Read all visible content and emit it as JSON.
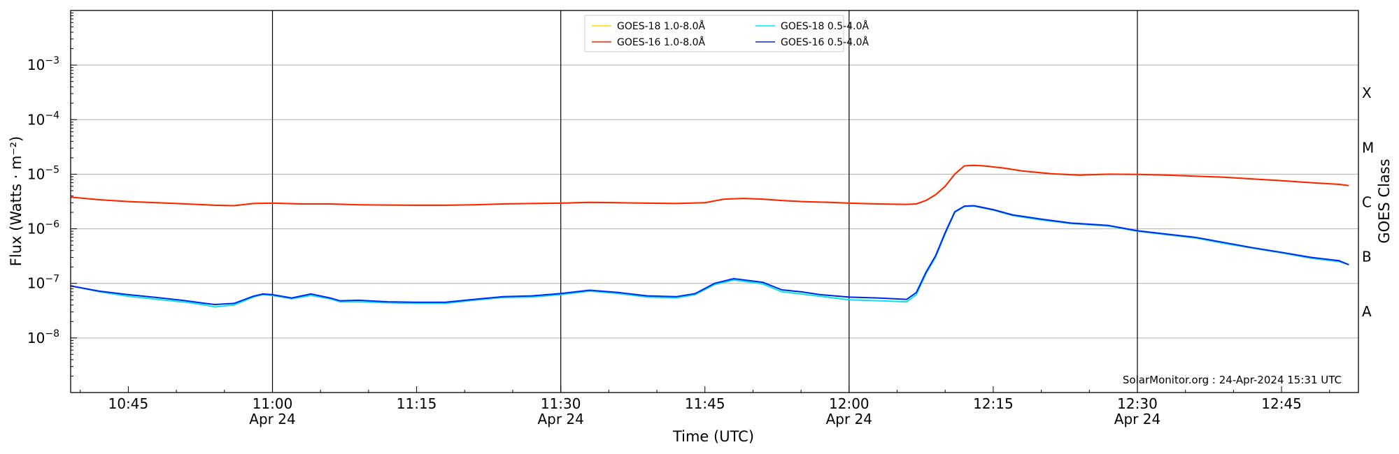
{
  "chart_data": {
    "type": "line",
    "xlabel": "Time (UTC)",
    "ylabel": "Flux (Watts · m⁻²)",
    "ylabel_right": "GOES Class",
    "yscale": "log",
    "ylim": [
      1e-09,
      0.01
    ],
    "xlim": [
      "10:39",
      "12:53"
    ],
    "grid": "horizontal",
    "legend_position": "top-center",
    "x_ticks": [
      {
        "time": "10:45",
        "label": "10:45",
        "sublabel": ""
      },
      {
        "time": "11:00",
        "label": "11:00",
        "sublabel": "Apr 24"
      },
      {
        "time": "11:15",
        "label": "11:15",
        "sublabel": ""
      },
      {
        "time": "11:30",
        "label": "11:30",
        "sublabel": "Apr 24"
      },
      {
        "time": "11:45",
        "label": "11:45",
        "sublabel": ""
      },
      {
        "time": "12:00",
        "label": "12:00",
        "sublabel": "Apr 24"
      },
      {
        "time": "12:15",
        "label": "12:15",
        "sublabel": ""
      },
      {
        "time": "12:30",
        "label": "12:30",
        "sublabel": "Apr 24"
      },
      {
        "time": "12:45",
        "label": "12:45",
        "sublabel": ""
      }
    ],
    "day_lines": [
      "11:00",
      "11:30",
      "12:00",
      "12:30"
    ],
    "y_ticks": [
      {
        "value": 1e-08,
        "base": "10",
        "exp": "−8"
      },
      {
        "value": 1e-07,
        "base": "10",
        "exp": "−7"
      },
      {
        "value": 1e-06,
        "base": "10",
        "exp": "−6"
      },
      {
        "value": 1e-05,
        "base": "10",
        "exp": "−5"
      },
      {
        "value": 0.0001,
        "base": "10",
        "exp": "−4"
      },
      {
        "value": 0.001,
        "base": "10",
        "exp": "−3"
      }
    ],
    "goes_classes": [
      {
        "label": "A",
        "value": 3.16e-08
      },
      {
        "label": "B",
        "value": 3.16e-07
      },
      {
        "label": "C",
        "value": 3.16e-06
      },
      {
        "label": "M",
        "value": 3.16e-05
      },
      {
        "label": "X",
        "value": 0.000316
      }
    ],
    "legend": [
      {
        "name": "GOES-18 1.0-8.0Å",
        "color": "#ffd700"
      },
      {
        "name": "GOES-18 0.5-4.0Å",
        "color": "#00e5ff"
      },
      {
        "name": "GOES-16 1.0-8.0Å",
        "color": "#ff2200"
      },
      {
        "name": "GOES-16 0.5-4.0Å",
        "color": "#0022ee"
      }
    ],
    "series": [
      {
        "name": "GOES-18 1.0-8.0Å",
        "color": "#ffd700",
        "points": [
          [
            "10:39",
            3.8e-06
          ],
          [
            "10:42",
            3.4e-06
          ],
          [
            "10:45",
            3.15e-06
          ],
          [
            "10:48",
            3e-06
          ],
          [
            "10:51",
            2.85e-06
          ],
          [
            "10:54",
            2.7e-06
          ],
          [
            "10:56",
            2.65e-06
          ],
          [
            "10:58",
            2.9e-06
          ],
          [
            "11:00",
            2.95e-06
          ],
          [
            "11:03",
            2.85e-06
          ],
          [
            "11:06",
            2.85e-06
          ],
          [
            "11:09",
            2.75e-06
          ],
          [
            "11:12",
            2.72e-06
          ],
          [
            "11:15",
            2.7e-06
          ],
          [
            "11:18",
            2.7e-06
          ],
          [
            "11:21",
            2.75e-06
          ],
          [
            "11:24",
            2.85e-06
          ],
          [
            "11:27",
            2.9e-06
          ],
          [
            "11:30",
            2.95e-06
          ],
          [
            "11:33",
            3.05e-06
          ],
          [
            "11:36",
            3e-06
          ],
          [
            "11:39",
            2.95e-06
          ],
          [
            "11:42",
            2.9e-06
          ],
          [
            "11:45",
            3e-06
          ],
          [
            "11:47",
            3.5e-06
          ],
          [
            "11:49",
            3.6e-06
          ],
          [
            "11:51",
            3.5e-06
          ],
          [
            "11:53",
            3.3e-06
          ],
          [
            "11:55",
            3.15e-06
          ],
          [
            "11:58",
            3.05e-06
          ],
          [
            "12:00",
            2.95e-06
          ],
          [
            "12:03",
            2.85e-06
          ],
          [
            "12:06",
            2.8e-06
          ],
          [
            "12:07",
            2.85e-06
          ],
          [
            "12:08",
            3.3e-06
          ],
          [
            "12:09",
            4.2e-06
          ],
          [
            "12:10",
            6e-06
          ],
          [
            "12:11",
            1e-05
          ],
          [
            "12:12",
            1.42e-05
          ],
          [
            "12:13",
            1.45e-05
          ],
          [
            "12:14",
            1.42e-05
          ],
          [
            "12:16",
            1.3e-05
          ],
          [
            "12:18",
            1.15e-05
          ],
          [
            "12:21",
            1.02e-05
          ],
          [
            "12:24",
            9.6e-06
          ],
          [
            "12:27",
            1e-05
          ],
          [
            "12:30",
            9.9e-06
          ],
          [
            "12:33",
            9.6e-06
          ],
          [
            "12:36",
            9.2e-06
          ],
          [
            "12:39",
            8.8e-06
          ],
          [
            "12:42",
            8.2e-06
          ],
          [
            "12:45",
            7.6e-06
          ],
          [
            "12:48",
            7e-06
          ],
          [
            "12:51",
            6.5e-06
          ],
          [
            "12:52",
            6.2e-06
          ]
        ]
      },
      {
        "name": "GOES-18 0.5-4.0Å",
        "color": "#00e5ff",
        "points": [
          [
            "10:39",
            9e-08
          ],
          [
            "10:42",
            7e-08
          ],
          [
            "10:45",
            5.8e-08
          ],
          [
            "10:48",
            5.1e-08
          ],
          [
            "10:51",
            4.5e-08
          ],
          [
            "10:53",
            4e-08
          ],
          [
            "10:54",
            3.7e-08
          ],
          [
            "10:56",
            4e-08
          ],
          [
            "10:58",
            5.6e-08
          ],
          [
            "10:59",
            6.2e-08
          ],
          [
            "11:00",
            6e-08
          ],
          [
            "11:02",
            5.2e-08
          ],
          [
            "11:04",
            6e-08
          ],
          [
            "11:06",
            5.2e-08
          ],
          [
            "11:07",
            4.6e-08
          ],
          [
            "11:09",
            4.6e-08
          ],
          [
            "11:12",
            4.4e-08
          ],
          [
            "11:15",
            4.3e-08
          ],
          [
            "11:18",
            4.3e-08
          ],
          [
            "11:21",
            4.9e-08
          ],
          [
            "11:24",
            5.5e-08
          ],
          [
            "11:27",
            5.6e-08
          ],
          [
            "11:30",
            6.2e-08
          ],
          [
            "11:33",
            7.2e-08
          ],
          [
            "11:36",
            6.5e-08
          ],
          [
            "11:39",
            5.6e-08
          ],
          [
            "11:42",
            5.4e-08
          ],
          [
            "11:44",
            6.2e-08
          ],
          [
            "11:46",
            9.5e-08
          ],
          [
            "11:48",
            1.15e-07
          ],
          [
            "11:51",
            9.8e-08
          ],
          [
            "11:53",
            7e-08
          ],
          [
            "11:55",
            6.4e-08
          ],
          [
            "11:57",
            5.8e-08
          ],
          [
            "12:00",
            5e-08
          ],
          [
            "12:03",
            4.8e-08
          ],
          [
            "12:06",
            4.6e-08
          ],
          [
            "12:07",
            6.2e-08
          ],
          [
            "12:08",
            1.5e-07
          ],
          [
            "12:09",
            3e-07
          ],
          [
            "12:10",
            8e-07
          ],
          [
            "12:11",
            2e-06
          ],
          [
            "12:12",
            2.55e-06
          ],
          [
            "12:13",
            2.6e-06
          ],
          [
            "12:15",
            2.2e-06
          ],
          [
            "12:17",
            1.75e-06
          ],
          [
            "12:20",
            1.45e-06
          ],
          [
            "12:23",
            1.25e-06
          ],
          [
            "12:27",
            1.12e-06
          ],
          [
            "12:30",
            9e-07
          ],
          [
            "12:33",
            7.8e-07
          ],
          [
            "12:36",
            6.8e-07
          ],
          [
            "12:39",
            5.4e-07
          ],
          [
            "12:42",
            4.4e-07
          ],
          [
            "12:45",
            3.6e-07
          ],
          [
            "12:48",
            2.9e-07
          ],
          [
            "12:51",
            2.5e-07
          ],
          [
            "12:52",
            2.2e-07
          ]
        ]
      },
      {
        "name": "GOES-16 1.0-8.0Å",
        "color": "#ff2200",
        "points": [
          [
            "10:39",
            3.8e-06
          ],
          [
            "10:42",
            3.4e-06
          ],
          [
            "10:45",
            3.15e-06
          ],
          [
            "10:48",
            3e-06
          ],
          [
            "10:51",
            2.85e-06
          ],
          [
            "10:54",
            2.7e-06
          ],
          [
            "10:56",
            2.65e-06
          ],
          [
            "10:58",
            2.9e-06
          ],
          [
            "11:00",
            2.95e-06
          ],
          [
            "11:03",
            2.85e-06
          ],
          [
            "11:06",
            2.85e-06
          ],
          [
            "11:09",
            2.75e-06
          ],
          [
            "11:12",
            2.72e-06
          ],
          [
            "11:15",
            2.7e-06
          ],
          [
            "11:18",
            2.7e-06
          ],
          [
            "11:21",
            2.75e-06
          ],
          [
            "11:24",
            2.85e-06
          ],
          [
            "11:27",
            2.9e-06
          ],
          [
            "11:30",
            2.95e-06
          ],
          [
            "11:33",
            3.05e-06
          ],
          [
            "11:36",
            3e-06
          ],
          [
            "11:39",
            2.95e-06
          ],
          [
            "11:42",
            2.9e-06
          ],
          [
            "11:45",
            3e-06
          ],
          [
            "11:47",
            3.5e-06
          ],
          [
            "11:49",
            3.6e-06
          ],
          [
            "11:51",
            3.5e-06
          ],
          [
            "11:53",
            3.3e-06
          ],
          [
            "11:55",
            3.15e-06
          ],
          [
            "11:58",
            3.05e-06
          ],
          [
            "12:00",
            2.95e-06
          ],
          [
            "12:03",
            2.85e-06
          ],
          [
            "12:06",
            2.8e-06
          ],
          [
            "12:07",
            2.85e-06
          ],
          [
            "12:08",
            3.3e-06
          ],
          [
            "12:09",
            4.2e-06
          ],
          [
            "12:10",
            6e-06
          ],
          [
            "12:11",
            1e-05
          ],
          [
            "12:12",
            1.42e-05
          ],
          [
            "12:13",
            1.45e-05
          ],
          [
            "12:14",
            1.42e-05
          ],
          [
            "12:16",
            1.3e-05
          ],
          [
            "12:18",
            1.15e-05
          ],
          [
            "12:21",
            1.02e-05
          ],
          [
            "12:24",
            9.6e-06
          ],
          [
            "12:27",
            1e-05
          ],
          [
            "12:30",
            9.9e-06
          ],
          [
            "12:33",
            9.6e-06
          ],
          [
            "12:36",
            9.2e-06
          ],
          [
            "12:39",
            8.8e-06
          ],
          [
            "12:42",
            8.2e-06
          ],
          [
            "12:45",
            7.6e-06
          ],
          [
            "12:48",
            7e-06
          ],
          [
            "12:51",
            6.5e-06
          ],
          [
            "12:52",
            6.2e-06
          ]
        ]
      },
      {
        "name": "GOES-16 0.5-4.0Å",
        "color": "#0022ee",
        "points": [
          [
            "10:39",
            9e-08
          ],
          [
            "10:42",
            7.2e-08
          ],
          [
            "10:45",
            6.2e-08
          ],
          [
            "10:48",
            5.5e-08
          ],
          [
            "10:51",
            4.8e-08
          ],
          [
            "10:53",
            4.3e-08
          ],
          [
            "10:54",
            4.1e-08
          ],
          [
            "10:56",
            4.3e-08
          ],
          [
            "10:58",
            5.8e-08
          ],
          [
            "10:59",
            6.4e-08
          ],
          [
            "11:00",
            6.2e-08
          ],
          [
            "11:02",
            5.4e-08
          ],
          [
            "11:04",
            6.4e-08
          ],
          [
            "11:06",
            5.4e-08
          ],
          [
            "11:07",
            4.8e-08
          ],
          [
            "11:09",
            4.9e-08
          ],
          [
            "11:12",
            4.6e-08
          ],
          [
            "11:15",
            4.5e-08
          ],
          [
            "11:18",
            4.5e-08
          ],
          [
            "11:21",
            5.1e-08
          ],
          [
            "11:24",
            5.7e-08
          ],
          [
            "11:27",
            5.9e-08
          ],
          [
            "11:30",
            6.5e-08
          ],
          [
            "11:33",
            7.5e-08
          ],
          [
            "11:36",
            6.8e-08
          ],
          [
            "11:39",
            5.9e-08
          ],
          [
            "11:42",
            5.7e-08
          ],
          [
            "11:44",
            6.5e-08
          ],
          [
            "11:46",
            1e-07
          ],
          [
            "11:48",
            1.22e-07
          ],
          [
            "11:51",
            1.05e-07
          ],
          [
            "11:53",
            7.6e-08
          ],
          [
            "11:55",
            7e-08
          ],
          [
            "11:57",
            6.2e-08
          ],
          [
            "12:00",
            5.6e-08
          ],
          [
            "12:03",
            5.4e-08
          ],
          [
            "12:06",
            5.1e-08
          ],
          [
            "12:07",
            6.8e-08
          ],
          [
            "12:08",
            1.6e-07
          ],
          [
            "12:09",
            3.2e-07
          ],
          [
            "12:10",
            8.5e-07
          ],
          [
            "12:11",
            2.05e-06
          ],
          [
            "12:12",
            2.6e-06
          ],
          [
            "12:13",
            2.65e-06
          ],
          [
            "12:15",
            2.25e-06
          ],
          [
            "12:17",
            1.8e-06
          ],
          [
            "12:20",
            1.5e-06
          ],
          [
            "12:23",
            1.28e-06
          ],
          [
            "12:27",
            1.15e-06
          ],
          [
            "12:30",
            9.2e-07
          ],
          [
            "12:33",
            8e-07
          ],
          [
            "12:36",
            7e-07
          ],
          [
            "12:39",
            5.6e-07
          ],
          [
            "12:42",
            4.5e-07
          ],
          [
            "12:45",
            3.7e-07
          ],
          [
            "12:48",
            3e-07
          ],
          [
            "12:51",
            2.6e-07
          ],
          [
            "12:52",
            2.2e-07
          ]
        ]
      }
    ],
    "credit": "SolarMonitor.org : 24-Apr-2024 15:31 UTC"
  }
}
